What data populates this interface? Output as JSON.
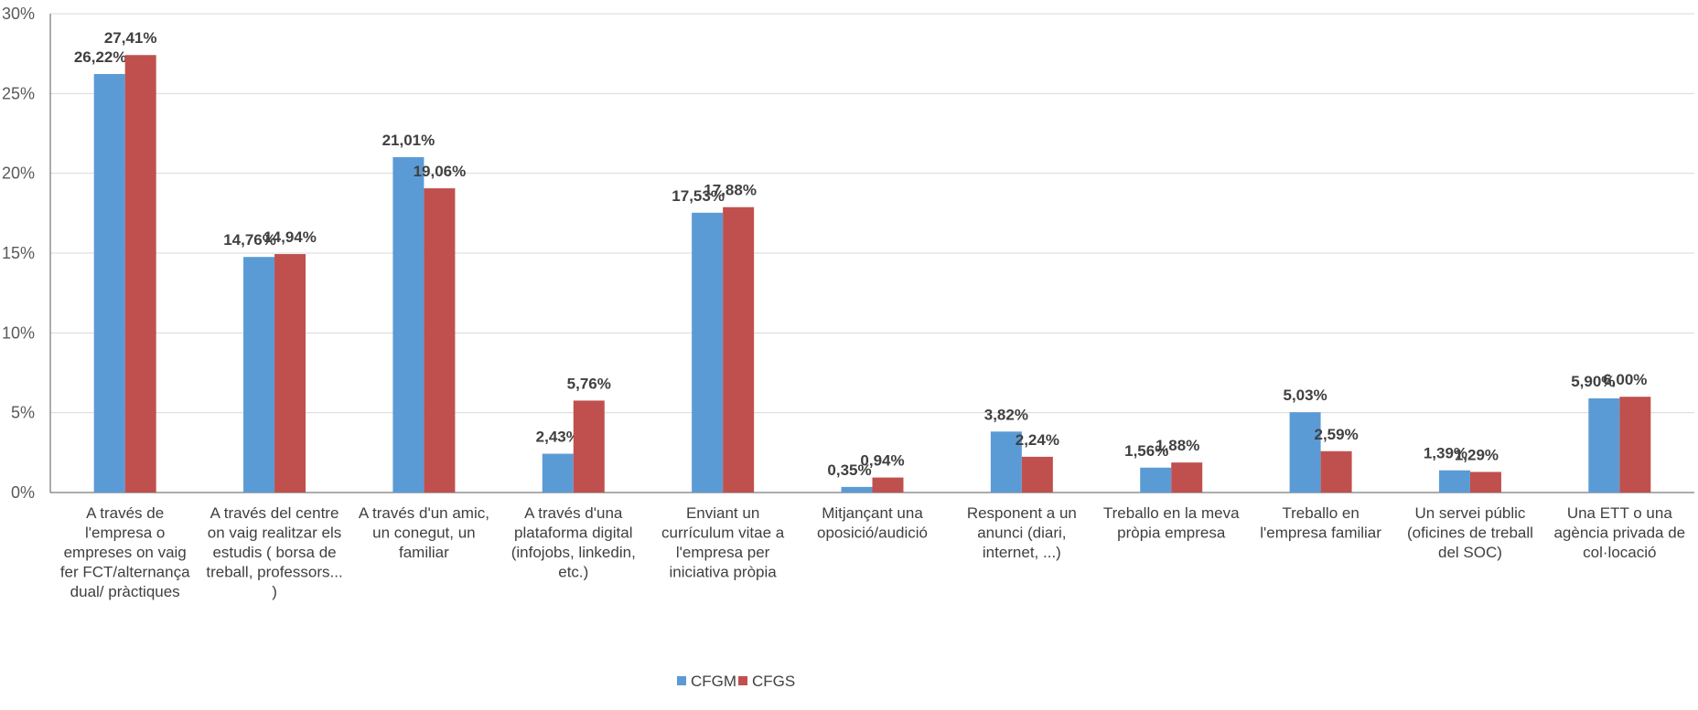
{
  "chart_data": {
    "type": "bar",
    "title": "",
    "xlabel": "",
    "ylabel": "",
    "ylim": [
      0,
      30
    ],
    "yticks": [
      "0%",
      "5%",
      "10%",
      "15%",
      "20%",
      "25%",
      "30%"
    ],
    "grid": true,
    "legend_position": "bottom",
    "categories": [
      [
        "A través de",
        "l'empresa o",
        "empreses on vaig",
        "fer FCT/alternança",
        "dual/ pràctiques"
      ],
      [
        "A través del centre",
        "on vaig realitzar els",
        "estudis ( borsa de",
        "treball, professors...",
        ")"
      ],
      [
        "A través d'un amic,",
        "un conegut, un",
        "familiar"
      ],
      [
        "A través d'una",
        "plataforma digital",
        "(infojobs, linkedin,",
        "etc.)"
      ],
      [
        "Enviant un",
        "currículum vitae a",
        "l'empresa per",
        "iniciativa pròpia"
      ],
      [
        "Mitjançant una",
        "oposició/audició"
      ],
      [
        "Responent a un",
        "anunci (diari,",
        "internet, ...)"
      ],
      [
        "Treballo en la meva",
        "pròpia empresa"
      ],
      [
        "Treballo en",
        "l'empresa familiar"
      ],
      [
        "Un servei públic",
        "(oficines de treball",
        "del SOC)"
      ],
      [
        "Una ETT o una",
        "agència  privada de",
        "col·locació"
      ]
    ],
    "series": [
      {
        "name": "CFGM",
        "color": "#5B9BD5",
        "values": [
          26.22,
          14.76,
          21.01,
          2.43,
          17.53,
          0.35,
          3.82,
          1.56,
          5.03,
          1.39,
          5.9
        ],
        "labels": [
          "26,22%",
          "14,76%",
          "21,01%",
          "2,43%",
          "17,53%",
          "0,35%",
          "3,82%",
          "1,56%",
          "5,03%",
          "1,39%",
          "5,90%"
        ]
      },
      {
        "name": "CFGS",
        "color": "#C0504D",
        "values": [
          27.41,
          14.94,
          19.06,
          5.76,
          17.88,
          0.94,
          2.24,
          1.88,
          2.59,
          1.29,
          6.0
        ],
        "labels": [
          "27,41%",
          "14,94%",
          "19,06%",
          "5,76%",
          "17,88%",
          "0,94%",
          "2,24%",
          "1,88%",
          "2,59%",
          "1,29%",
          "6,00%"
        ]
      }
    ]
  }
}
